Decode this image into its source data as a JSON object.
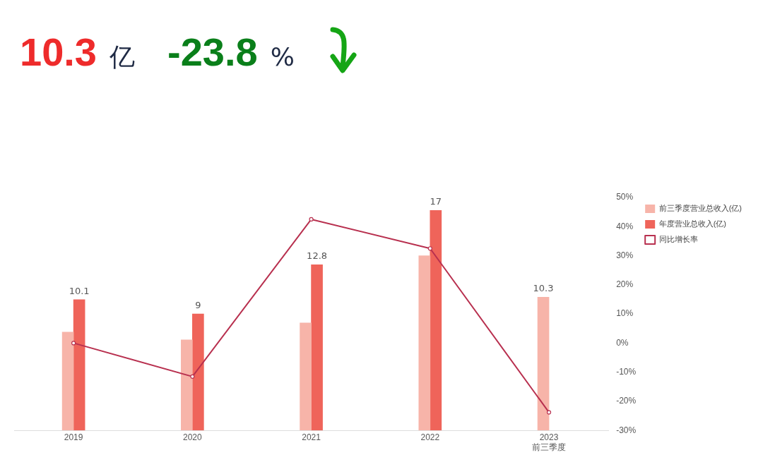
{
  "chart_data": {
    "type": "bar",
    "title": "10.3 亿",
    "subtitle": "-23.8 %",
    "categories": [
      "2019",
      "2020",
      "2021",
      "2022",
      "2023\n前三季度"
    ],
    "series": [
      {
        "name": "前三季度营业总收入(亿)",
        "color": "#f7b4a9",
        "values": [
          7.6,
          7.0,
          8.3,
          13.5,
          10.3
        ],
        "value_labels": [
          null,
          null,
          null,
          null,
          "10.3"
        ]
      },
      {
        "name": "年度营业总收入(亿)",
        "color": "#ef645a",
        "values": [
          10.1,
          9,
          12.8,
          17,
          null
        ],
        "value_labels": [
          "10.1",
          "9",
          "12.8",
          "17",
          null
        ]
      },
      {
        "name": "同比增长率",
        "type": "line",
        "axis": "y2",
        "color": "#b8304f",
        "values": [
          0,
          -11.5,
          42.5,
          32.5,
          -23.8
        ]
      }
    ],
    "y2lim": [
      -30,
      50
    ],
    "y2ticks": [
      {
        "value": -30,
        "label": "-30%"
      },
      {
        "value": -20,
        "label": "-20%"
      },
      {
        "value": -10,
        "label": "-10%"
      },
      {
        "value": 0,
        "label": "0%"
      },
      {
        "value": 10,
        "label": "10%"
      },
      {
        "value": 20,
        "label": "20%"
      },
      {
        "value": 30,
        "label": "30%"
      },
      {
        "value": 40,
        "label": "40%"
      },
      {
        "value": 50,
        "label": "50%"
      }
    ],
    "marker": "circle",
    "legend": "top right"
  }
}
